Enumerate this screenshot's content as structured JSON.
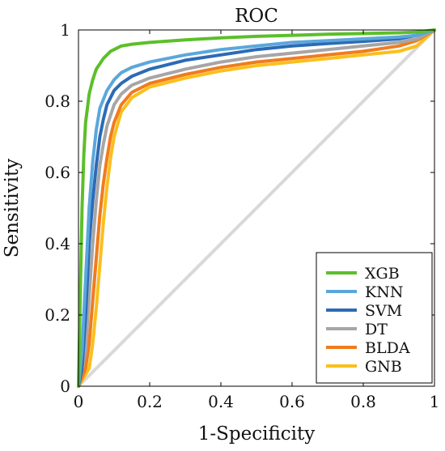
{
  "chart_data": {
    "type": "line",
    "title": "ROC",
    "xlabel": "1-Specificity",
    "ylabel": "Sensitivity",
    "xlim": [
      0,
      1
    ],
    "ylim": [
      0,
      1
    ],
    "x_ticks": [
      "0",
      "0.2",
      "0.4",
      "0.6",
      "0.8",
      "1"
    ],
    "y_ticks": [
      "0",
      "0.2",
      "0.4",
      "0.6",
      "0.8",
      "1"
    ],
    "grid": false,
    "legend_position": "bottom-right",
    "diagonal": {
      "x": [
        0,
        1
      ],
      "y": [
        0,
        1
      ],
      "color": "#d9d9d9"
    },
    "series": [
      {
        "name": "XGB",
        "color": "#5cbf2a",
        "x": [
          0,
          0.005,
          0.01,
          0.015,
          0.02,
          0.03,
          0.04,
          0.05,
          0.07,
          0.09,
          0.12,
          0.15,
          0.2,
          0.3,
          0.4,
          0.5,
          0.6,
          0.7,
          0.8,
          0.9,
          0.95,
          1
        ],
        "y": [
          0,
          0.25,
          0.5,
          0.65,
          0.74,
          0.82,
          0.86,
          0.89,
          0.92,
          0.94,
          0.955,
          0.96,
          0.965,
          0.972,
          0.978,
          0.982,
          0.985,
          0.988,
          0.99,
          0.992,
          0.994,
          1
        ]
      },
      {
        "name": "KNN",
        "color": "#5aa7dc",
        "x": [
          0,
          0.01,
          0.02,
          0.03,
          0.04,
          0.05,
          0.06,
          0.08,
          0.1,
          0.12,
          0.15,
          0.2,
          0.3,
          0.4,
          0.5,
          0.6,
          0.7,
          0.8,
          0.9,
          0.95,
          1
        ],
        "y": [
          0,
          0.1,
          0.3,
          0.5,
          0.63,
          0.72,
          0.78,
          0.83,
          0.86,
          0.88,
          0.895,
          0.91,
          0.93,
          0.945,
          0.955,
          0.965,
          0.97,
          0.975,
          0.98,
          0.985,
          1
        ]
      },
      {
        "name": "SVM",
        "color": "#2c6bb5",
        "x": [
          0,
          0.01,
          0.02,
          0.03,
          0.04,
          0.05,
          0.06,
          0.07,
          0.08,
          0.1,
          0.12,
          0.15,
          0.2,
          0.3,
          0.4,
          0.5,
          0.6,
          0.7,
          0.8,
          0.9,
          0.95,
          1
        ],
        "y": [
          0,
          0.05,
          0.2,
          0.4,
          0.52,
          0.62,
          0.7,
          0.75,
          0.79,
          0.83,
          0.85,
          0.87,
          0.89,
          0.915,
          0.93,
          0.945,
          0.955,
          0.962,
          0.968,
          0.975,
          0.985,
          1
        ]
      },
      {
        "name": "DT",
        "color": "#a6a6a6",
        "x": [
          0,
          0.02,
          0.03,
          0.04,
          0.05,
          0.06,
          0.07,
          0.08,
          0.1,
          0.12,
          0.15,
          0.2,
          0.3,
          0.4,
          0.5,
          0.6,
          0.7,
          0.8,
          0.9,
          0.95,
          1
        ],
        "y": [
          0,
          0.1,
          0.25,
          0.4,
          0.52,
          0.62,
          0.68,
          0.73,
          0.79,
          0.82,
          0.845,
          0.865,
          0.89,
          0.91,
          0.925,
          0.935,
          0.945,
          0.955,
          0.965,
          0.975,
          1
        ]
      },
      {
        "name": "BLDA",
        "color": "#f07c1e",
        "x": [
          0,
          0.02,
          0.03,
          0.04,
          0.05,
          0.06,
          0.07,
          0.08,
          0.09,
          0.1,
          0.12,
          0.15,
          0.2,
          0.3,
          0.4,
          0.5,
          0.6,
          0.7,
          0.8,
          0.9,
          0.95,
          1
        ],
        "y": [
          0,
          0.05,
          0.12,
          0.24,
          0.36,
          0.48,
          0.57,
          0.64,
          0.7,
          0.74,
          0.79,
          0.825,
          0.85,
          0.875,
          0.895,
          0.91,
          0.92,
          0.93,
          0.94,
          0.955,
          0.97,
          1
        ]
      },
      {
        "name": "GNB",
        "color": "#fbbf1c",
        "x": [
          0,
          0.03,
          0.04,
          0.05,
          0.06,
          0.07,
          0.08,
          0.09,
          0.1,
          0.12,
          0.15,
          0.2,
          0.3,
          0.4,
          0.5,
          0.6,
          0.7,
          0.8,
          0.9,
          0.95,
          1
        ],
        "y": [
          0,
          0.05,
          0.12,
          0.22,
          0.34,
          0.46,
          0.56,
          0.64,
          0.7,
          0.77,
          0.81,
          0.84,
          0.865,
          0.885,
          0.9,
          0.91,
          0.92,
          0.93,
          0.94,
          0.955,
          1
        ]
      }
    ]
  }
}
